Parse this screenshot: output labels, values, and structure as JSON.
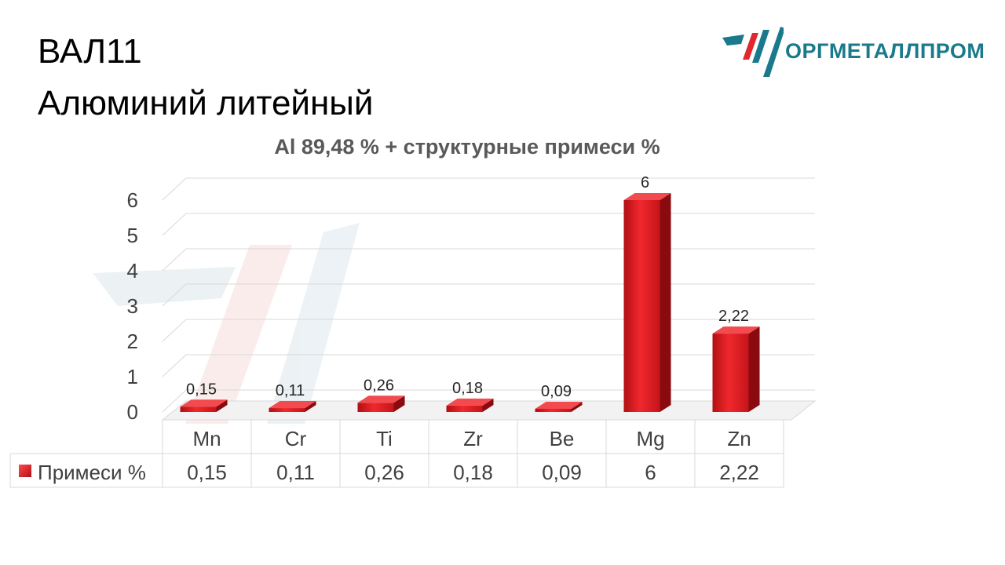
{
  "slide": {
    "title_line1": "ВАЛ11",
    "title_line2": "Алюминий литейный"
  },
  "logo": {
    "text": "ОРГМЕТАЛЛПРОМ",
    "colors": {
      "teal": "#1a7a8c",
      "red": "#e0282e"
    }
  },
  "chart_data": {
    "type": "bar",
    "title": "Al 89,48 % + структурные примеси %",
    "categories": [
      "Mn",
      "Cr",
      "Ti",
      "Zr",
      "Be",
      "Mg",
      "Zn"
    ],
    "series": [
      {
        "name": "Примеси %",
        "values": [
          0.15,
          0.11,
          0.26,
          0.18,
          0.09,
          6,
          2.22
        ]
      }
    ],
    "value_labels": [
      "0,15",
      "0,11",
      "0,26",
      "0,18",
      "0,09",
      "6",
      "2,22"
    ],
    "yticks": [
      "0",
      "1",
      "2",
      "3",
      "4",
      "5",
      "6"
    ],
    "ylim": [
      0,
      6
    ],
    "grid": true,
    "legend": "data-table",
    "bar_color": "#e8262b"
  }
}
